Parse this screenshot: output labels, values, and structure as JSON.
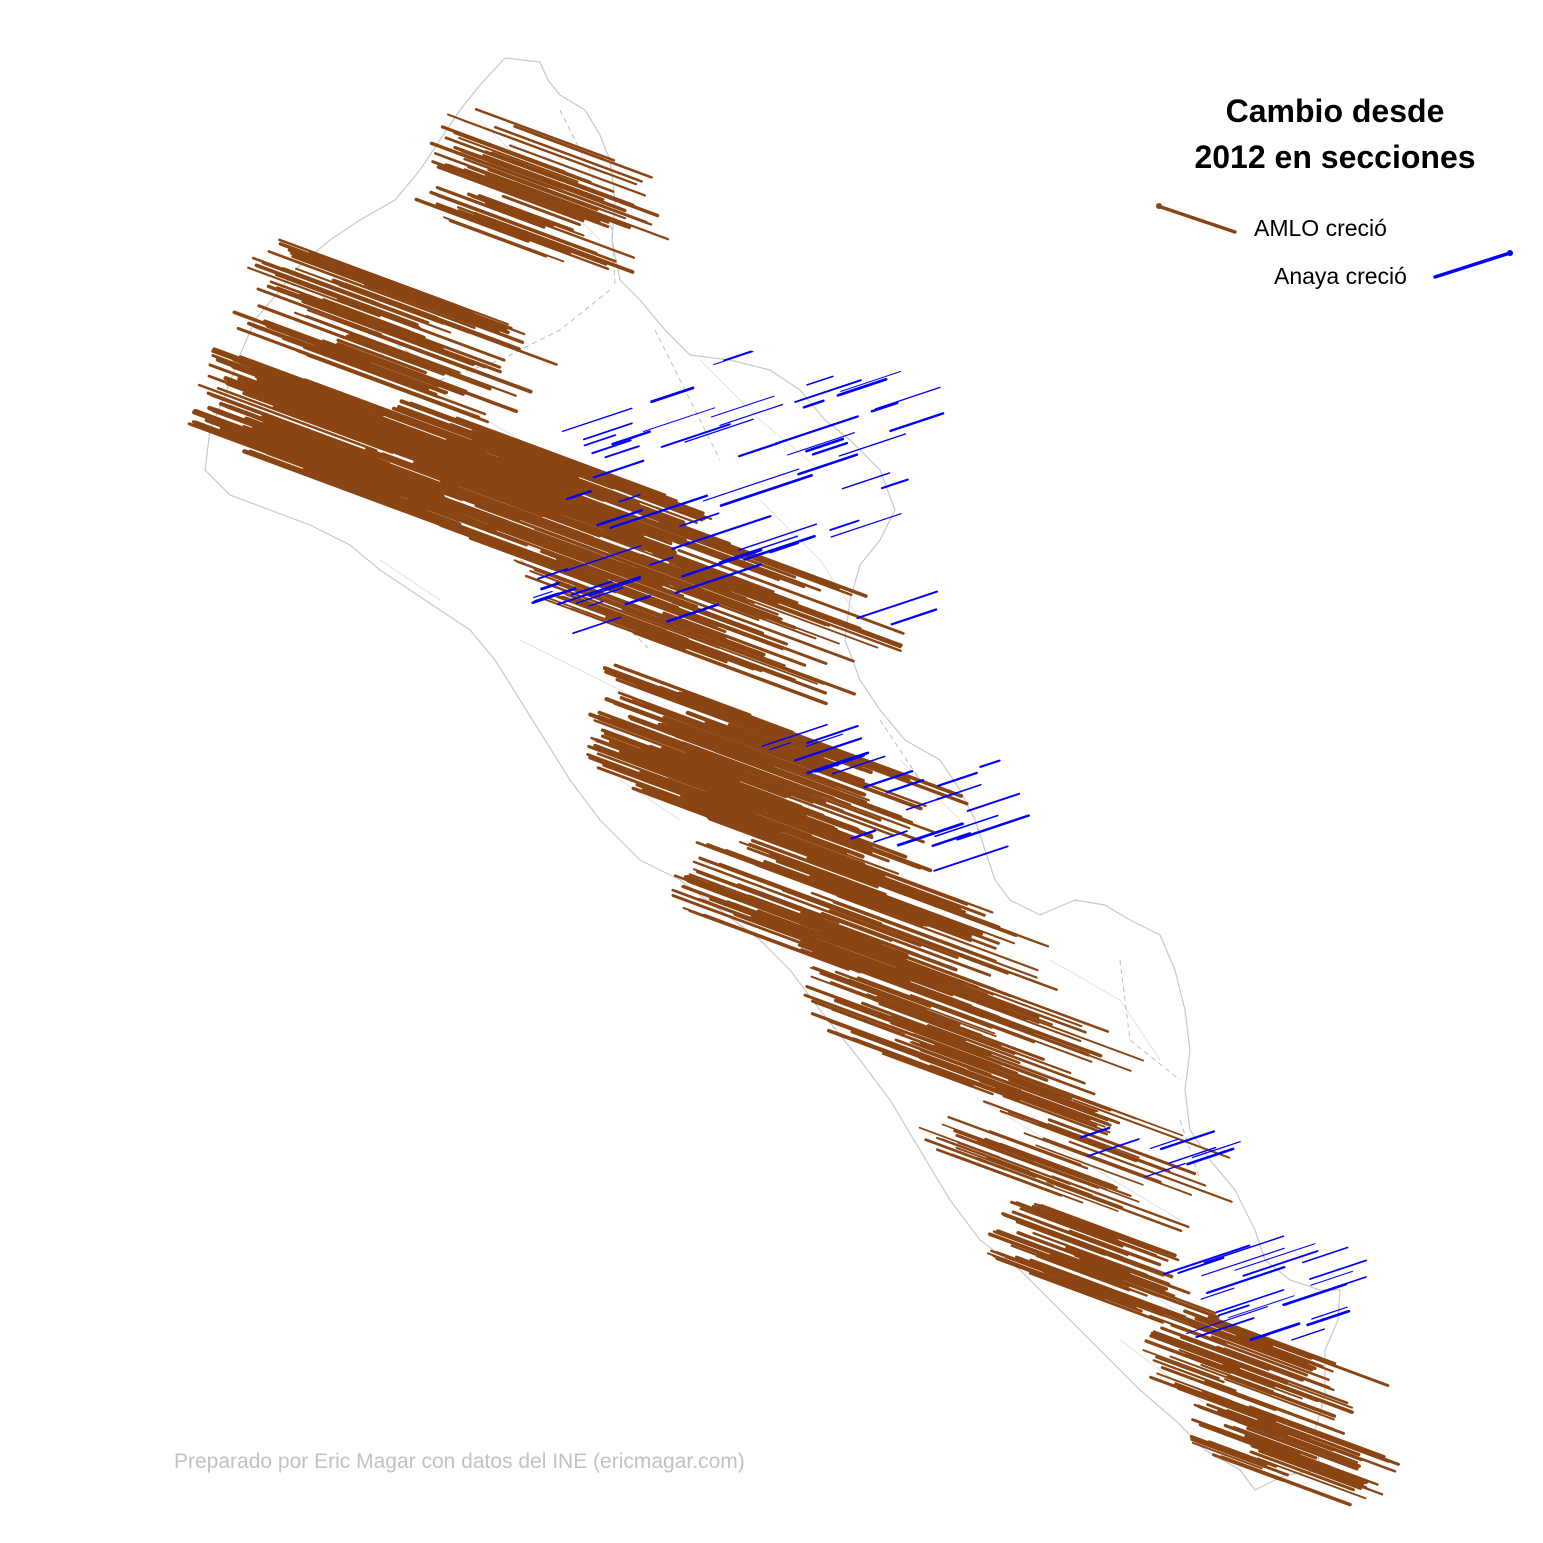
{
  "legend": {
    "title_line1": "Cambio desde",
    "title_line2": "2012 en secciones",
    "amlo_label": "AMLO creció",
    "anaya_label": "Anaya creció"
  },
  "credit": "Preparado por Eric Magar con datos del INE (ericmagar.com)",
  "colors": {
    "amlo": "#8B4513",
    "anaya": "#0000FF",
    "borders": "#c8c8c8",
    "credit_text": "#c2c2c2"
  }
}
